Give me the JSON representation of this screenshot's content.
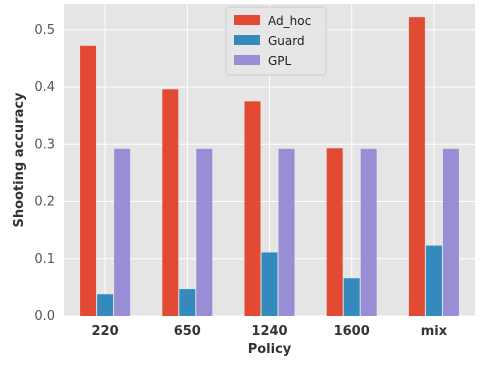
{
  "chart_data": {
    "type": "bar",
    "categories": [
      "220",
      "650",
      "1240",
      "1600",
      "mix"
    ],
    "series": [
      {
        "name": "Ad_hoc",
        "color": "#E24A33",
        "values": [
          0.472,
          0.396,
          0.375,
          0.293,
          0.522
        ]
      },
      {
        "name": "Guard",
        "color": "#348ABD",
        "values": [
          0.038,
          0.047,
          0.111,
          0.066,
          0.123
        ]
      },
      {
        "name": "GPL",
        "color": "#988ED5",
        "values": [
          0.292,
          0.292,
          0.292,
          0.292,
          0.292
        ]
      }
    ],
    "xlabel": "Policy",
    "ylabel": "Shooting accuracy",
    "ylim": [
      0,
      0.545
    ],
    "yticks": [
      0.0,
      0.1,
      0.2,
      0.3,
      0.4,
      0.5
    ],
    "ytick_labels": [
      "0.0",
      "0.1",
      "0.2",
      "0.3",
      "0.4",
      "0.5"
    ],
    "grid": true,
    "legend_position": "top-center",
    "background_color": "#E5E5E5",
    "grid_color": "#FFFFFF"
  }
}
